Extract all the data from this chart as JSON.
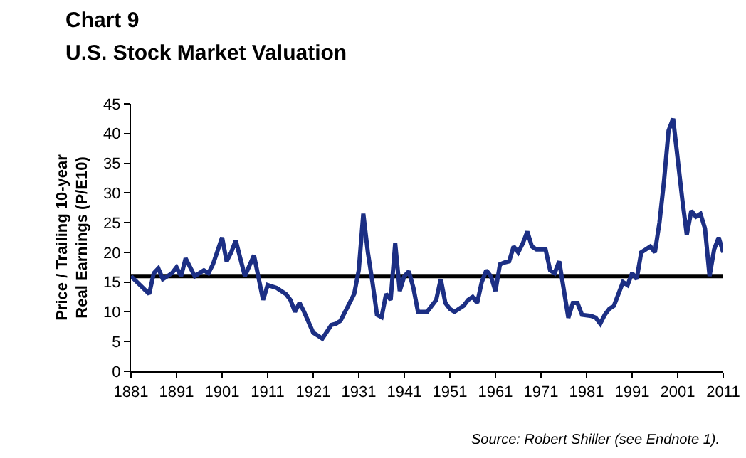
{
  "chart_data": {
    "type": "line",
    "title": "Chart 9",
    "subtitle": "U.S. Stock Market Valuation",
    "ylabel": "Price / Trailing 10-year\nReal Earnings (P/E10)",
    "x": [
      1881,
      1883,
      1885,
      1886,
      1887,
      1888,
      1890,
      1891,
      1892,
      1893,
      1895,
      1897,
      1898,
      1899,
      1901,
      1902,
      1903,
      1904,
      1906,
      1908,
      1910,
      1911,
      1913,
      1915,
      1916,
      1917,
      1918,
      1919,
      1921,
      1922,
      1923,
      1925,
      1926,
      1927,
      1929,
      1930,
      1931,
      1932,
      1933,
      1934,
      1935,
      1936,
      1937,
      1938,
      1939,
      1940,
      1941,
      1942,
      1943,
      1944,
      1946,
      1947,
      1948,
      1949,
      1950,
      1951,
      1952,
      1954,
      1955,
      1956,
      1957,
      1958,
      1959,
      1960,
      1961,
      1962,
      1963,
      1964,
      1965,
      1966,
      1967,
      1968,
      1969,
      1970,
      1971,
      1972,
      1973,
      1974,
      1975,
      1977,
      1978,
      1979,
      1980,
      1982,
      1983,
      1984,
      1985,
      1986,
      1987,
      1988,
      1989,
      1990,
      1991,
      1992,
      1993,
      1994,
      1995,
      1996,
      1997,
      1998,
      1999,
      2000,
      2002,
      2003,
      2004,
      2005,
      2006,
      2007,
      2008,
      2009,
      2010,
      2011
    ],
    "series": [
      {
        "color": "#1c2f84",
        "values": [
          16,
          14.5,
          13,
          16.5,
          17.3,
          15.5,
          16.5,
          17.5,
          16,
          19,
          16,
          17,
          16.5,
          18,
          22.5,
          18.5,
          20,
          22,
          16,
          19.5,
          12,
          14.5,
          14,
          13,
          12,
          10,
          11.5,
          10,
          6.5,
          6,
          5.5,
          7.8,
          8,
          8.5,
          11.5,
          13,
          17,
          26.5,
          20,
          15,
          9.5,
          9.1,
          13,
          12,
          21.5,
          13.5,
          16,
          16.8,
          14,
          10,
          10,
          11,
          12,
          15.5,
          11.5,
          10.5,
          10,
          11,
          12,
          12.5,
          11.5,
          15,
          17,
          16,
          13.5,
          18,
          18.3,
          18.5,
          21,
          20,
          21.5,
          23.5,
          21,
          20.5,
          20.5,
          20.5,
          17,
          16.5,
          18.5,
          9,
          11.5,
          11.5,
          9.5,
          9.3,
          9,
          8,
          9.5,
          10.5,
          11,
          13,
          15,
          14.5,
          16.5,
          15.5,
          20,
          20.5,
          21,
          20,
          25,
          32,
          40.5,
          42.5,
          29,
          23,
          27,
          26,
          26.5,
          24,
          16,
          20.5,
          22.5,
          20
        ]
      }
    ],
    "xlim": [
      1881,
      2011
    ],
    "xticks": [
      1881,
      1891,
      1901,
      1911,
      1921,
      1931,
      1941,
      1951,
      1961,
      1971,
      1981,
      1991,
      2001,
      2011
    ],
    "ylim": [
      0,
      45
    ],
    "yticks": [
      0,
      5,
      10,
      15,
      20,
      25,
      30,
      35,
      40,
      45
    ],
    "ref_lines": [
      {
        "axis": "y",
        "value": 16,
        "color": "#000000"
      }
    ],
    "grid": false,
    "marker": "none",
    "line_style": "solid",
    "annotations": [
      "Source: Robert Shiller (see Endnote 1)."
    ]
  }
}
